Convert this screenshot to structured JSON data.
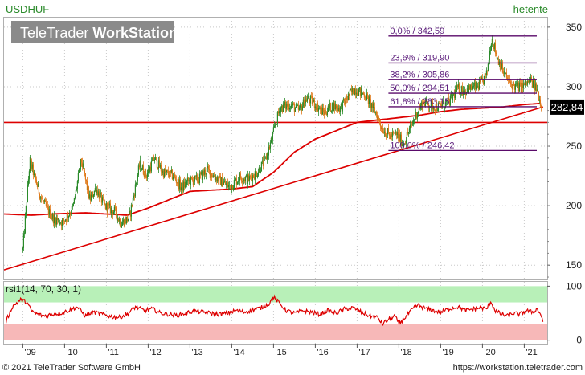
{
  "header": {
    "symbol": "USDHUF",
    "period": "hetente",
    "brand_regular": "TeleTrader ",
    "brand_bold": "WorkStation"
  },
  "footer": {
    "copyright": "© 2021 TeleTrader Software GmbH",
    "url": "https://workstation.teletrader.com"
  },
  "colors": {
    "up_candle": "#2a8a2a",
    "down_candle": "#e07a1a",
    "moving_average": "#dd0000",
    "trendline": "#dd0000",
    "fib_line": "#5a0a6a",
    "fib_text": "#5a1a7a",
    "rsi_line": "#dd0000",
    "rsi_upper_band": "#b8f0b8",
    "rsi_lower_band": "#f7b8b8",
    "last_price_bg": "#000000"
  },
  "chart_data": [
    {
      "type": "candlestick",
      "title": "USDHUF",
      "subtitle": "hetente",
      "x_tick_labels": [
        "'09",
        "'10",
        "'11",
        "'12",
        "'13",
        "'14",
        "'15",
        "'16",
        "'17",
        "'18",
        "'19",
        "'20",
        "'21"
      ],
      "x_tick_years": [
        2009,
        2010,
        2011,
        2012,
        2013,
        2014,
        2015,
        2016,
        2017,
        2018,
        2019,
        2020,
        2021
      ],
      "xlim": [
        2008.55,
        2021.55
      ],
      "y_tick_labels": [
        "150",
        "200",
        "250",
        "300",
        "350"
      ],
      "y_ticks": [
        150,
        200,
        250,
        300,
        350
      ],
      "ylim": [
        138,
        358
      ],
      "last_price": 282.84,
      "last_price_label": "282,84",
      "price_anchors": [
        [
          2009.0,
          163
        ],
        [
          2009.17,
          238
        ],
        [
          2009.3,
          222
        ],
        [
          2009.45,
          205
        ],
        [
          2009.7,
          190
        ],
        [
          2009.95,
          186
        ],
        [
          2010.2,
          198
        ],
        [
          2010.4,
          238
        ],
        [
          2010.6,
          205
        ],
        [
          2010.75,
          215
        ],
        [
          2010.95,
          200
        ],
        [
          2011.2,
          195
        ],
        [
          2011.35,
          185
        ],
        [
          2011.55,
          190
        ],
        [
          2011.8,
          235
        ],
        [
          2011.95,
          225
        ],
        [
          2012.15,
          240
        ],
        [
          2012.35,
          228
        ],
        [
          2012.6,
          225
        ],
        [
          2012.8,
          215
        ],
        [
          2012.95,
          220
        ],
        [
          2013.2,
          222
        ],
        [
          2013.4,
          230
        ],
        [
          2013.6,
          224
        ],
        [
          2013.8,
          219
        ],
        [
          2013.95,
          216
        ],
        [
          2014.2,
          224
        ],
        [
          2014.4,
          222
        ],
        [
          2014.6,
          228
        ],
        [
          2014.8,
          238
        ],
        [
          2014.95,
          255
        ],
        [
          2015.15,
          282
        ],
        [
          2015.4,
          285
        ],
        [
          2015.6,
          280
        ],
        [
          2015.8,
          290
        ],
        [
          2015.95,
          287
        ],
        [
          2016.2,
          278
        ],
        [
          2016.4,
          284
        ],
        [
          2016.6,
          282
        ],
        [
          2016.85,
          295
        ],
        [
          2016.95,
          298
        ],
        [
          2017.2,
          293
        ],
        [
          2017.45,
          278
        ],
        [
          2017.6,
          265
        ],
        [
          2017.8,
          258
        ],
        [
          2017.95,
          260
        ],
        [
          2018.1,
          252
        ],
        [
          2018.3,
          267
        ],
        [
          2018.45,
          280
        ],
        [
          2018.6,
          287
        ],
        [
          2018.8,
          284
        ],
        [
          2018.95,
          283
        ],
        [
          2019.2,
          287
        ],
        [
          2019.4,
          298
        ],
        [
          2019.6,
          297
        ],
        [
          2019.85,
          300
        ],
        [
          2019.95,
          302
        ],
        [
          2020.1,
          310
        ],
        [
          2020.22,
          342
        ],
        [
          2020.35,
          325
        ],
        [
          2020.5,
          312
        ],
        [
          2020.65,
          303
        ],
        [
          2020.8,
          300
        ],
        [
          2020.95,
          300
        ],
        [
          2021.15,
          305
        ],
        [
          2021.3,
          298
        ],
        [
          2021.42,
          282.84
        ]
      ],
      "moving_average_anchors": [
        [
          2008.55,
          193
        ],
        [
          2009.2,
          192
        ],
        [
          2009.7,
          193
        ],
        [
          2010.5,
          194
        ],
        [
          2011.0,
          193
        ],
        [
          2011.5,
          192
        ],
        [
          2012.0,
          198
        ],
        [
          2012.5,
          205
        ],
        [
          2013.0,
          212
        ],
        [
          2013.5,
          213
        ],
        [
          2014.0,
          214
        ],
        [
          2014.5,
          216
        ],
        [
          2015.0,
          228
        ],
        [
          2015.5,
          245
        ],
        [
          2016.0,
          256
        ],
        [
          2016.5,
          263
        ],
        [
          2017.0,
          270
        ],
        [
          2017.5,
          272
        ],
        [
          2018.0,
          274
        ],
        [
          2018.5,
          276
        ],
        [
          2019.0,
          279
        ],
        [
          2019.5,
          281
        ],
        [
          2020.0,
          282
        ],
        [
          2020.5,
          283
        ],
        [
          2021.0,
          285
        ],
        [
          2021.42,
          286
        ]
      ],
      "trendline": {
        "start": [
          2008.55,
          146
        ],
        "end": [
          2021.45,
          283
        ]
      },
      "horizontal_line": 270,
      "fibonacci": {
        "x_start": 2017.75,
        "x_end": 2021.3,
        "levels": [
          {
            "value": 342.59,
            "label": "0,0% / 342,59"
          },
          {
            "value": 319.9,
            "label": "23,6% / 319,90"
          },
          {
            "value": 305.86,
            "label": "38,2% / 305,86"
          },
          {
            "value": 294.51,
            "label": "50,0% / 294,51"
          },
          {
            "value": 283.15,
            "label": "61,8% / 283,15"
          },
          {
            "value": 246.42,
            "label": "100,0% / 246,42"
          }
        ]
      }
    },
    {
      "type": "line",
      "title": "rsi1(14, 70, 30, 1)",
      "y_tick_labels": [
        "100",
        "0"
      ],
      "y_ticks": [
        100,
        0
      ],
      "ylim": [
        -8,
        108
      ],
      "upper_band": [
        70,
        100
      ],
      "lower_band": [
        0,
        30
      ],
      "rsi_anchors": [
        [
          2008.6,
          35
        ],
        [
          2008.75,
          62
        ],
        [
          2008.95,
          75
        ],
        [
          2009.1,
          70
        ],
        [
          2009.2,
          55
        ],
        [
          2009.35,
          48
        ],
        [
          2009.5,
          45
        ],
        [
          2009.7,
          48
        ],
        [
          2009.9,
          50
        ],
        [
          2010.1,
          55
        ],
        [
          2010.3,
          62
        ],
        [
          2010.5,
          45
        ],
        [
          2010.7,
          52
        ],
        [
          2010.9,
          48
        ],
        [
          2011.1,
          44
        ],
        [
          2011.3,
          42
        ],
        [
          2011.5,
          48
        ],
        [
          2011.7,
          62
        ],
        [
          2011.9,
          55
        ],
        [
          2012.1,
          58
        ],
        [
          2012.3,
          50
        ],
        [
          2012.5,
          48
        ],
        [
          2012.7,
          46
        ],
        [
          2012.9,
          50
        ],
        [
          2013.1,
          54
        ],
        [
          2013.3,
          52
        ],
        [
          2013.5,
          50
        ],
        [
          2013.7,
          48
        ],
        [
          2013.9,
          50
        ],
        [
          2014.1,
          55
        ],
        [
          2014.3,
          52
        ],
        [
          2014.5,
          56
        ],
        [
          2014.7,
          60
        ],
        [
          2014.9,
          68
        ],
        [
          2015.0,
          80
        ],
        [
          2015.1,
          72
        ],
        [
          2015.3,
          55
        ],
        [
          2015.5,
          50
        ],
        [
          2015.7,
          55
        ],
        [
          2015.9,
          52
        ],
        [
          2016.1,
          48
        ],
        [
          2016.3,
          55
        ],
        [
          2016.5,
          50
        ],
        [
          2016.7,
          58
        ],
        [
          2016.9,
          60
        ],
        [
          2017.1,
          52
        ],
        [
          2017.3,
          45
        ],
        [
          2017.5,
          42
        ],
        [
          2017.6,
          30
        ],
        [
          2017.75,
          38
        ],
        [
          2017.9,
          45
        ],
        [
          2018.0,
          30
        ],
        [
          2018.1,
          38
        ],
        [
          2018.3,
          55
        ],
        [
          2018.45,
          65
        ],
        [
          2018.6,
          60
        ],
        [
          2018.8,
          55
        ],
        [
          2019.0,
          52
        ],
        [
          2019.2,
          58
        ],
        [
          2019.4,
          62
        ],
        [
          2019.6,
          55
        ],
        [
          2019.8,
          58
        ],
        [
          2019.95,
          60
        ],
        [
          2020.1,
          58
        ],
        [
          2020.2,
          72
        ],
        [
          2020.3,
          55
        ],
        [
          2020.45,
          48
        ],
        [
          2020.6,
          45
        ],
        [
          2020.75,
          50
        ],
        [
          2020.9,
          48
        ],
        [
          2021.05,
          55
        ],
        [
          2021.2,
          52
        ],
        [
          2021.3,
          58
        ],
        [
          2021.38,
          50
        ],
        [
          2021.45,
          35
        ]
      ]
    }
  ]
}
